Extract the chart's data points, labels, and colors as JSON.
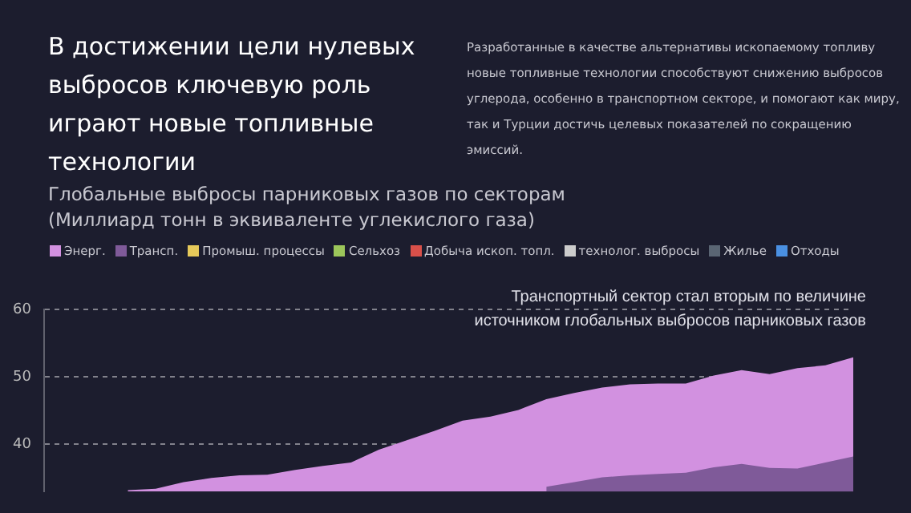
{
  "chart_data": {
    "type": "area",
    "title": "В достижении цели нулевых выбросов ключевую роль играют новые топливные технологии",
    "subtitle": "Глобальные выбросы парниковых газов по секторам",
    "ylabel": "(Миллиард тонн в эквиваленте углекислого газа)",
    "annotations": [
      "Разработанные в качестве альтернативы ископаемому топливу новые топливные технологии способствуют снижению выбросов углерода, особенно в транспортном секторе, и помогают как миру, так и Турции достичь целевых показателей по сокращению эмиссий.",
      "Транспортный сектор стал вторым по величине источником глобальных выбросов парниковых газов"
    ],
    "categories": [
      null,
      null,
      null,
      null,
      null,
      null,
      null,
      null,
      null,
      null,
      null,
      null,
      null,
      null,
      null,
      null,
      null,
      null,
      null,
      null,
      null,
      null,
      null,
      null,
      null,
      null,
      null,
      null,
      null,
      null
    ],
    "series": [
      {
        "name": "Энерг.",
        "color": "#d291e0",
        "values": [
          null,
          null,
          null,
          33.2,
          33.4,
          34.4,
          35.0,
          35.4,
          35.5,
          36.2,
          36.8,
          37.3,
          39.2,
          40.6,
          42.0,
          43.5,
          44.1,
          45.1,
          46.7,
          47.6,
          48.4,
          48.9,
          49.0,
          49.0,
          50.2,
          51.0,
          50.4,
          51.3,
          51.7,
          52.9
        ]
      },
      {
        "name": "Трансп.",
        "color": "#7f5a99",
        "values": [
          null,
          null,
          null,
          null,
          null,
          null,
          null,
          null,
          null,
          null,
          null,
          null,
          null,
          null,
          null,
          null,
          null,
          null,
          33.7,
          34.4,
          35.1,
          35.4,
          35.6,
          35.8,
          36.6,
          37.1,
          36.5,
          36.4,
          37.3,
          38.2
        ]
      },
      {
        "name": "Промыш. процессы",
        "color": "#e6c95a",
        "values": [
          null,
          null,
          null,
          null,
          null,
          null,
          null,
          null,
          null,
          null,
          null,
          null,
          null,
          null,
          null,
          null,
          null,
          null,
          null,
          null,
          null,
          null,
          null,
          null,
          null,
          null,
          null,
          null,
          null,
          null
        ]
      },
      {
        "name": "Сельхоз",
        "color": "#9cc65a",
        "values": [
          null,
          null,
          null,
          null,
          null,
          null,
          null,
          null,
          null,
          null,
          null,
          null,
          null,
          null,
          null,
          null,
          null,
          null,
          null,
          null,
          null,
          null,
          null,
          null,
          null,
          null,
          null,
          null,
          null,
          null
        ]
      },
      {
        "name": "Добыча ископ. топл.",
        "color": "#d9504a",
        "values": [
          null,
          null,
          null,
          null,
          null,
          null,
          null,
          null,
          null,
          null,
          null,
          null,
          null,
          null,
          null,
          null,
          null,
          null,
          null,
          null,
          null,
          null,
          null,
          null,
          null,
          null,
          null,
          null,
          null,
          null
        ]
      },
      {
        "name": "технолог. выбросы",
        "color": "#cccccc",
        "values": [
          null,
          null,
          null,
          null,
          null,
          null,
          null,
          null,
          null,
          null,
          null,
          null,
          null,
          null,
          null,
          null,
          null,
          null,
          null,
          null,
          null,
          null,
          null,
          null,
          null,
          null,
          null,
          null,
          null,
          null
        ]
      },
      {
        "name": "Жилье",
        "color": "#5a6573",
        "values": [
          null,
          null,
          null,
          null,
          null,
          null,
          null,
          null,
          null,
          null,
          null,
          null,
          null,
          null,
          null,
          null,
          null,
          null,
          null,
          null,
          null,
          null,
          null,
          null,
          null,
          null,
          null,
          null,
          null,
          null
        ]
      },
      {
        "name": "Отходы",
        "color": "#4a90e2",
        "values": [
          null,
          null,
          null,
          null,
          null,
          null,
          null,
          null,
          null,
          null,
          null,
          null,
          null,
          null,
          null,
          null,
          null,
          null,
          null,
          null,
          null,
          null,
          null,
          null,
          null,
          null,
          null,
          null,
          null,
          null
        ]
      }
    ],
    "ylim": [
      33,
      60
    ],
    "yticks": [
      40,
      50,
      60
    ],
    "grid": "y",
    "tick_labels": "y",
    "legend": "top"
  }
}
